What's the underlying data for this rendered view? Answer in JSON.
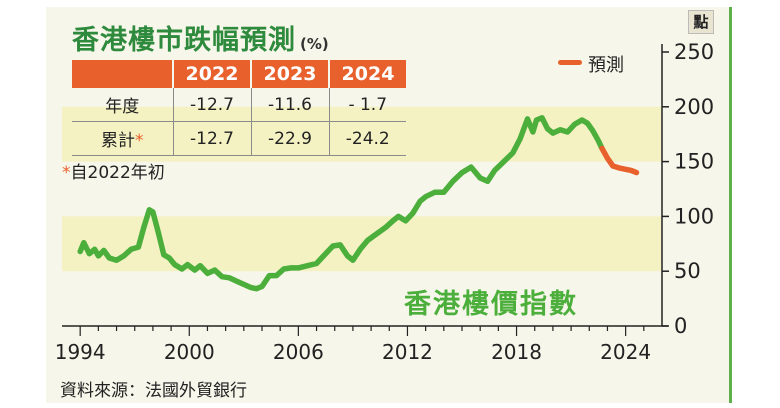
{
  "title": "香港樓市跌幅預測",
  "title_unit": "(%)",
  "table": {
    "headers": [
      "2022",
      "2023",
      "2024"
    ],
    "rows": [
      {
        "label": "年度",
        "star": "",
        "values": [
          "-12.7",
          "-11.6",
          "-  1.7"
        ]
      },
      {
        "label": "累計",
        "star": "*",
        "values": [
          "-12.7",
          "-22.9",
          "-24.2"
        ]
      }
    ]
  },
  "footnote_star": "*",
  "footnote": "自2022年初",
  "y_unit": "點",
  "index_label": "香港樓價指數",
  "legend_label": "預測",
  "source": "資料來源：法國外貿銀行",
  "colors": {
    "actual": "#4caf3c",
    "forecast": "#e8612c",
    "band": "#f4f1c2",
    "accent": "#e8612c",
    "title": "#2e8a3c"
  },
  "chart_data": {
    "type": "line",
    "ylim": [
      0,
      250
    ],
    "xlim": [
      1993,
      2026
    ],
    "yticks": [
      0,
      50,
      100,
      150,
      200,
      250
    ],
    "xticks": [
      1994,
      2000,
      2006,
      2012,
      2018,
      2024
    ],
    "bands": [
      [
        50,
        100
      ],
      [
        150,
        200
      ]
    ],
    "series": [
      {
        "style": "actual",
        "points": [
          [
            1994.0,
            68
          ],
          [
            1994.2,
            76
          ],
          [
            1994.5,
            66
          ],
          [
            1994.8,
            70
          ],
          [
            1995.0,
            64
          ],
          [
            1995.3,
            69
          ],
          [
            1995.6,
            62
          ],
          [
            1996.0,
            60
          ],
          [
            1996.4,
            64
          ],
          [
            1996.8,
            70
          ],
          [
            1997.2,
            72
          ],
          [
            1997.5,
            90
          ],
          [
            1997.8,
            106
          ],
          [
            1998.0,
            104
          ],
          [
            1998.3,
            85
          ],
          [
            1998.6,
            65
          ],
          [
            1998.9,
            62
          ],
          [
            1999.2,
            56
          ],
          [
            1999.6,
            52
          ],
          [
            1999.9,
            56
          ],
          [
            2000.3,
            51
          ],
          [
            2000.6,
            55
          ],
          [
            2001.0,
            48
          ],
          [
            2001.4,
            51
          ],
          [
            2001.8,
            45
          ],
          [
            2002.2,
            44
          ],
          [
            2002.6,
            41
          ],
          [
            2003.0,
            38
          ],
          [
            2003.4,
            35
          ],
          [
            2003.7,
            34
          ],
          [
            2004.0,
            36
          ],
          [
            2004.4,
            46
          ],
          [
            2004.8,
            46
          ],
          [
            2005.2,
            52
          ],
          [
            2005.6,
            53
          ],
          [
            2006.0,
            53
          ],
          [
            2006.5,
            55
          ],
          [
            2007.0,
            57
          ],
          [
            2007.5,
            66
          ],
          [
            2007.9,
            73
          ],
          [
            2008.3,
            74
          ],
          [
            2008.7,
            64
          ],
          [
            2009.0,
            60
          ],
          [
            2009.4,
            70
          ],
          [
            2009.8,
            78
          ],
          [
            2010.3,
            84
          ],
          [
            2010.8,
            90
          ],
          [
            2011.2,
            96
          ],
          [
            2011.5,
            100
          ],
          [
            2011.9,
            96
          ],
          [
            2012.3,
            103
          ],
          [
            2012.7,
            114
          ],
          [
            2013.0,
            118
          ],
          [
            2013.5,
            122
          ],
          [
            2014.0,
            122
          ],
          [
            2014.5,
            132
          ],
          [
            2015.0,
            140
          ],
          [
            2015.5,
            145
          ],
          [
            2016.0,
            135
          ],
          [
            2016.4,
            132
          ],
          [
            2016.8,
            142
          ],
          [
            2017.3,
            150
          ],
          [
            2017.8,
            158
          ],
          [
            2018.2,
            171
          ],
          [
            2018.6,
            189
          ],
          [
            2018.9,
            177
          ],
          [
            2019.1,
            188
          ],
          [
            2019.4,
            190
          ],
          [
            2019.7,
            180
          ],
          [
            2020.0,
            176
          ],
          [
            2020.4,
            179
          ],
          [
            2020.8,
            177
          ],
          [
            2021.2,
            184
          ],
          [
            2021.6,
            188
          ],
          [
            2021.9,
            185
          ],
          [
            2022.2,
            178
          ],
          [
            2022.5,
            169
          ],
          [
            2022.7,
            162
          ]
        ]
      },
      {
        "style": "forecast",
        "points": [
          [
            2022.7,
            162
          ],
          [
            2023.0,
            153
          ],
          [
            2023.3,
            146
          ],
          [
            2023.7,
            144
          ],
          [
            2024.3,
            142
          ],
          [
            2024.6,
            140
          ]
        ]
      }
    ]
  }
}
